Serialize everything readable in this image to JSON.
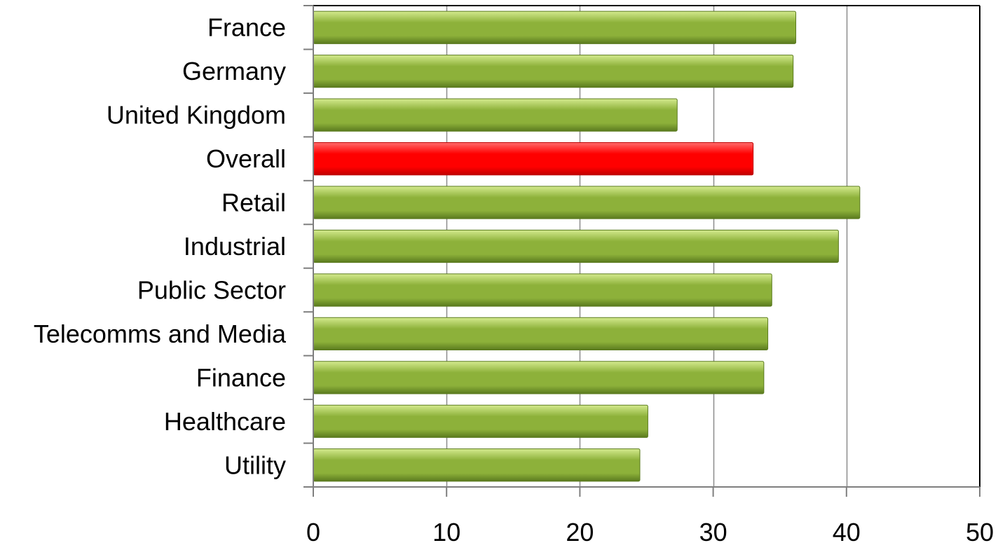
{
  "chart_data": {
    "type": "bar",
    "orientation": "horizontal",
    "categories": [
      "France",
      "Germany",
      "United Kingdom",
      "Overall",
      "Retail",
      "Industrial",
      "Public Sector",
      "Telecomms and Media",
      "Finance",
      "Healthcare",
      "Utility"
    ],
    "values": [
      36.2,
      36,
      27.3,
      33,
      41,
      39.4,
      34.4,
      34.1,
      33.8,
      25.1,
      24.5
    ],
    "highlight_category": "Overall",
    "xlim": [
      0,
      50
    ],
    "xticks": [
      0,
      10,
      20,
      30,
      40,
      50
    ],
    "xtick_labels": [
      "0",
      "10",
      "20",
      "30",
      "40",
      "50"
    ],
    "title": "",
    "xlabel": "",
    "ylabel": "",
    "grid": "vertical",
    "legend": "none",
    "colors": {
      "bar": "#8db13a",
      "bar_light": "#d4ea8e",
      "bar_dark": "#5a7a1e",
      "highlight": "#ff0000",
      "highlight_light": "#ff6a6a",
      "highlight_dark": "#c00000",
      "gridline": "#8c8c8c",
      "axis": "#7f7f7f",
      "frame": "#000000"
    }
  }
}
